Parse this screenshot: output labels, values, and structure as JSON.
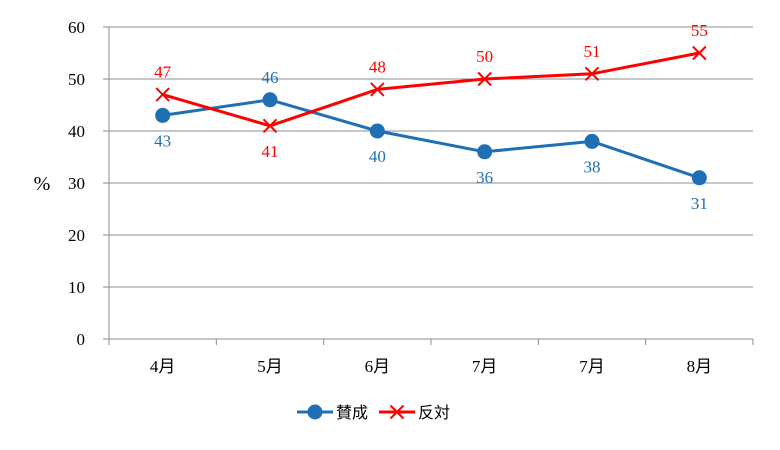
{
  "chart_data": {
    "type": "line",
    "categories": [
      "4月",
      "5月",
      "6月",
      "7月",
      "7月",
      "8月"
    ],
    "ylabel": "%",
    "ylim": [
      0,
      60
    ],
    "yticks": [
      0,
      10,
      20,
      30,
      40,
      50,
      60
    ],
    "grid": true,
    "legend": "bottom",
    "series": [
      {
        "name": "賛成",
        "color": "#1f6fb5",
        "marker": "circle",
        "values": [
          43,
          46,
          40,
          36,
          38,
          31
        ],
        "labels": [
          "43",
          "46",
          "40",
          "36",
          "38",
          "31"
        ]
      },
      {
        "name": "反対",
        "color": "#ff0000",
        "marker": "x",
        "values": [
          47,
          41,
          48,
          50,
          51,
          55
        ],
        "labels": [
          "47",
          "41",
          "48",
          "50",
          "51",
          "55"
        ]
      }
    ]
  }
}
